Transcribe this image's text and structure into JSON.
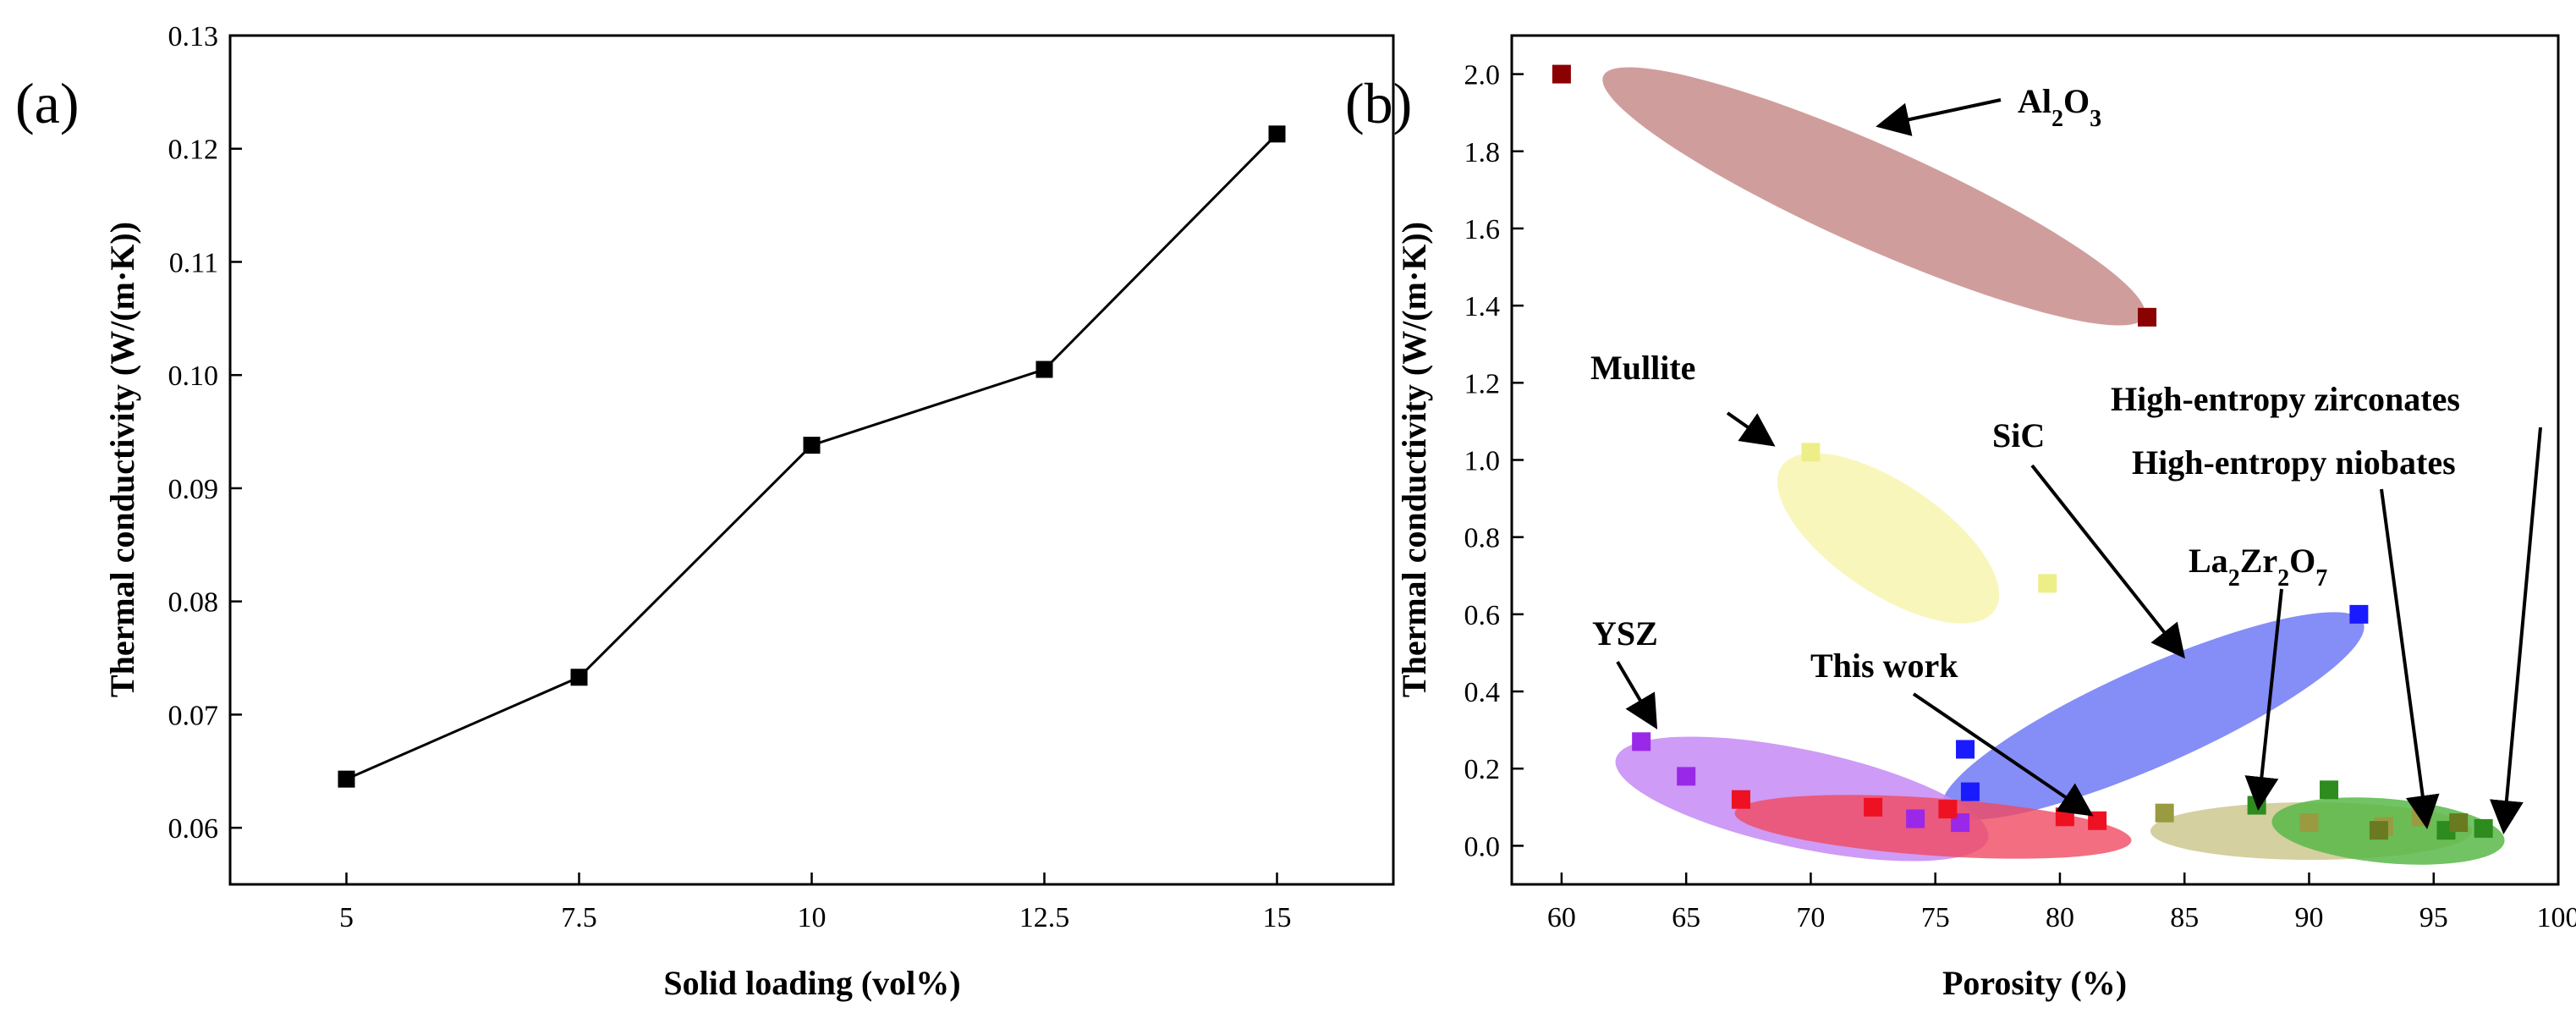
{
  "chart_data": [
    {
      "panel": "(a)",
      "type": "line",
      "xlabel": "Solid loading (vol%)",
      "ylabel": "Thermal conductivity (W/(m·K))",
      "xlim": [
        3.75,
        16.25
      ],
      "ylim": [
        0.055,
        0.13
      ],
      "x_ticks": [
        "5",
        "7.5",
        "10",
        "12.5",
        "15"
      ],
      "y_ticks": [
        "0.06",
        "0.07",
        "0.08",
        "0.09",
        "0.10",
        "0.11",
        "0.12",
        "0.13"
      ],
      "series": [
        {
          "name": "This work",
          "x": [
            5,
            7.5,
            10,
            12.5,
            15
          ],
          "y": [
            0.0643,
            0.0733,
            0.0938,
            0.1005,
            0.1213
          ],
          "color": "#000000",
          "marker": "square"
        }
      ]
    },
    {
      "panel": "(b)",
      "type": "scatter",
      "xlabel": "Porosity (%)",
      "ylabel": "Thermal conductivity (W/(m·K))",
      "xlim": [
        58,
        100
      ],
      "ylim": [
        -0.1,
        2.1
      ],
      "x_ticks": [
        "60",
        "65",
        "70",
        "75",
        "80",
        "85",
        "90",
        "95",
        "100"
      ],
      "y_ticks": [
        "0.0",
        "0.2",
        "0.4",
        "0.6",
        "0.8",
        "1.0",
        "1.2",
        "1.4",
        "1.6",
        "1.8",
        "2.0"
      ],
      "series": [
        {
          "name": "Al2O3",
          "color": "#8b0000",
          "fill": "#c07c7c",
          "ellipse_opacity": 0.75,
          "x": [
            60,
            83.5
          ],
          "y": [
            2.0,
            1.37
          ]
        },
        {
          "name": "Mullite",
          "color": "#eeee88",
          "fill": "#f8f4b0",
          "ellipse_opacity": 0.85,
          "x": [
            70,
            79.5
          ],
          "y": [
            1.02,
            0.68
          ]
        },
        {
          "name": "SiC",
          "color": "#1a1aff",
          "fill": "#6670f5",
          "ellipse_opacity": 0.8,
          "x": [
            92,
            76.2,
            76.4
          ],
          "y": [
            0.6,
            0.25,
            0.14
          ]
        },
        {
          "name": "YSZ",
          "color": "#9a28e8",
          "fill": "#c68af5",
          "ellipse_opacity": 0.85,
          "x": [
            63.2,
            65,
            74.2,
            76
          ],
          "y": [
            0.27,
            0.18,
            0.07,
            0.06
          ]
        },
        {
          "name": "This work",
          "color": "#ee1122",
          "fill": "#f04a60",
          "ellipse_opacity": 0.8,
          "x": [
            67.2,
            72.5,
            75.5,
            80.2,
            81.5
          ],
          "y": [
            0.12,
            0.1,
            0.095,
            0.075,
            0.065
          ]
        },
        {
          "name": "La2Zr2O7",
          "color": "#9a9a40",
          "fill": "#ccc88e",
          "ellipse_opacity": 0.85,
          "x": [
            84.2,
            90,
            93,
            94.5
          ],
          "y": [
            0.085,
            0.06,
            0.05,
            0.075
          ]
        },
        {
          "name": "High-entropy zirconates",
          "color": "#2e8b1e",
          "fill": "#58b848",
          "ellipse_opacity": 0.85,
          "x": [
            87.9,
            90.8,
            95.5,
            97
          ],
          "y": [
            0.105,
            0.145,
            0.04,
            0.045
          ]
        },
        {
          "name": "High-entropy niobates",
          "color": "#6a7a20",
          "fill": "#58b848",
          "ellipse_opacity": 0.0,
          "x": [
            92.8,
            96
          ],
          "y": [
            0.04,
            0.06
          ]
        }
      ],
      "annotations": [
        {
          "id": "al2o3",
          "base": "Al",
          "sub1": "2",
          "mid": "O",
          "sub2": "3"
        },
        {
          "id": "mullite",
          "text": "Mullite"
        },
        {
          "id": "sic",
          "text": "SiC"
        },
        {
          "id": "la2zr2o7",
          "base": "La",
          "sub1": "2",
          "mid": "Zr",
          "sub2": "2",
          "mid2": "O",
          "sub3": "7"
        },
        {
          "id": "ysz",
          "text": "YSZ"
        },
        {
          "id": "thiswork",
          "text": "This work"
        },
        {
          "id": "hez",
          "text": "High-entropy zirconates"
        },
        {
          "id": "hen",
          "text": "High-entropy niobates"
        }
      ]
    }
  ]
}
